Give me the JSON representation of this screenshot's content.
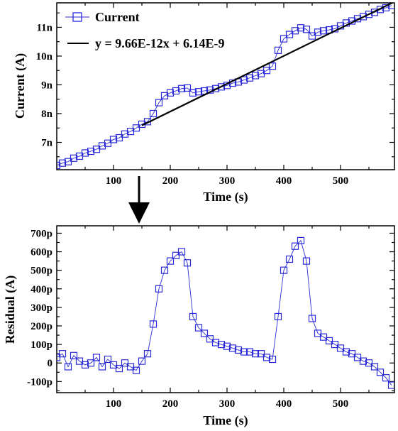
{
  "chart_data": [
    {
      "type": "scatter",
      "xlabel": "Time (s)",
      "ylabel": "Current (A)",
      "xlim": [
        0,
        595
      ],
      "ylim": [
        6.05e-09,
        1.185e-08
      ],
      "xticks": [
        100,
        200,
        300,
        400,
        500
      ],
      "xtick_labels": [
        "100",
        "200",
        "300",
        "400",
        "500"
      ],
      "yticks": [
        7e-09,
        8e-09,
        9e-09,
        1e-08,
        1.1e-08
      ],
      "ytick_labels": [
        "7n",
        "8n",
        "9n",
        "10n",
        "11n"
      ],
      "legend_position": "top-left",
      "series": [
        {
          "name": "Current",
          "style": "open-square-markers",
          "color": "#2a2ad8",
          "x": [
            0,
            10,
            20,
            30,
            40,
            50,
            60,
            70,
            80,
            90,
            100,
            110,
            120,
            130,
            140,
            150,
            160,
            170,
            180,
            190,
            200,
            210,
            220,
            230,
            240,
            250,
            260,
            270,
            280,
            290,
            300,
            310,
            320,
            330,
            340,
            350,
            360,
            370,
            380,
            390,
            400,
            410,
            420,
            430,
            440,
            450,
            460,
            470,
            480,
            490,
            500,
            510,
            520,
            530,
            540,
            550,
            560,
            570,
            580,
            590
          ],
          "y": [
            6.2e-09,
            6.28e-09,
            6.33e-09,
            6.45e-09,
            6.52e-09,
            6.63e-09,
            6.69e-09,
            6.76e-09,
            6.88e-09,
            6.97e-09,
            7.1e-09,
            7.16e-09,
            7.29e-09,
            7.38e-09,
            7.5e-09,
            7.63e-09,
            7.72e-09,
            8e-09,
            8.38e-09,
            8.62e-09,
            8.72e-09,
            8.79e-09,
            8.87e-09,
            8.89e-09,
            8.72e-09,
            8.76e-09,
            8.79e-09,
            8.82e-09,
            8.87e-09,
            8.93e-09,
            8.98e-09,
            9.06e-09,
            9.1e-09,
            9.17e-09,
            9.24e-09,
            9.32e-09,
            9.39e-09,
            9.5e-09,
            9.65e-09,
            1.02e-08,
            1.06e-08,
            1.075e-08,
            1.088e-08,
            1.098e-08,
            1.093e-08,
            1.07e-08,
            1.083e-08,
            1.088e-08,
            1.091e-08,
            1.095e-08,
            1.105e-08,
            1.115e-08,
            1.122e-08,
            1.13e-08,
            1.137e-08,
            1.145e-08,
            1.152e-08,
            1.162e-08,
            1.168e-08,
            1.176e-08
          ]
        },
        {
          "name": "y = 9.66E-12x + 6.14E-9",
          "style": "solid-line",
          "color": "#000000",
          "x": [
            150,
            595
          ],
          "y": [
            7.589e-09,
            1.1888e-08
          ]
        }
      ]
    },
    {
      "type": "scatter",
      "xlabel": "Time (s)",
      "ylabel": "Residual (A)",
      "xlim": [
        0,
        595
      ],
      "ylim": [
        -1.6e-10,
        7.4e-10
      ],
      "xticks": [
        100,
        200,
        300,
        400,
        500
      ],
      "xtick_labels": [
        "100",
        "200",
        "300",
        "400",
        "500"
      ],
      "yticks": [
        -1e-10,
        0,
        1e-10,
        2e-10,
        3e-10,
        4e-10,
        5e-10,
        6e-10,
        7e-10
      ],
      "ytick_labels": [
        "-100p",
        "0",
        "100p",
        "200p",
        "300p",
        "400p",
        "500p",
        "600p",
        "700p"
      ],
      "series": [
        {
          "name": "",
          "style": "open-square-markers-with-line",
          "color": "#2a2ad8",
          "x": [
            0,
            10,
            20,
            30,
            40,
            50,
            60,
            70,
            80,
            90,
            100,
            110,
            120,
            130,
            140,
            150,
            160,
            170,
            180,
            190,
            200,
            210,
            220,
            230,
            240,
            250,
            260,
            270,
            280,
            290,
            300,
            310,
            320,
            330,
            340,
            350,
            360,
            370,
            380,
            390,
            400,
            410,
            420,
            430,
            440,
            450,
            460,
            470,
            480,
            490,
            500,
            510,
            520,
            530,
            540,
            550,
            560,
            570,
            580,
            590
          ],
          "y": [
            3e-11,
            5e-11,
            -2e-11,
            4e-11,
            1e-11,
            -1e-11,
            0,
            3e-11,
            -2e-11,
            2e-11,
            -1e-11,
            -3e-11,
            0,
            -2e-11,
            -4e-11,
            1e-11,
            5e-11,
            2.1e-10,
            4e-10,
            5e-10,
            5.5e-10,
            5.8e-10,
            6e-10,
            5.4e-10,
            2.5e-10,
            1.9e-10,
            1.6e-10,
            1.3e-10,
            1.1e-10,
            1e-10,
            9e-11,
            8e-11,
            7e-11,
            6e-11,
            6e-11,
            5e-11,
            5e-11,
            3e-11,
            2e-11,
            2.5e-10,
            5e-10,
            5.6e-10,
            6.3e-10,
            6.6e-10,
            5.5e-10,
            2.4e-10,
            1.6e-10,
            1.4e-10,
            1.2e-10,
            1e-10,
            8e-11,
            6e-11,
            5e-11,
            3e-11,
            1e-11,
            0,
            -2e-11,
            -5e-11,
            -8e-11,
            -1.2e-10
          ]
        }
      ]
    }
  ]
}
